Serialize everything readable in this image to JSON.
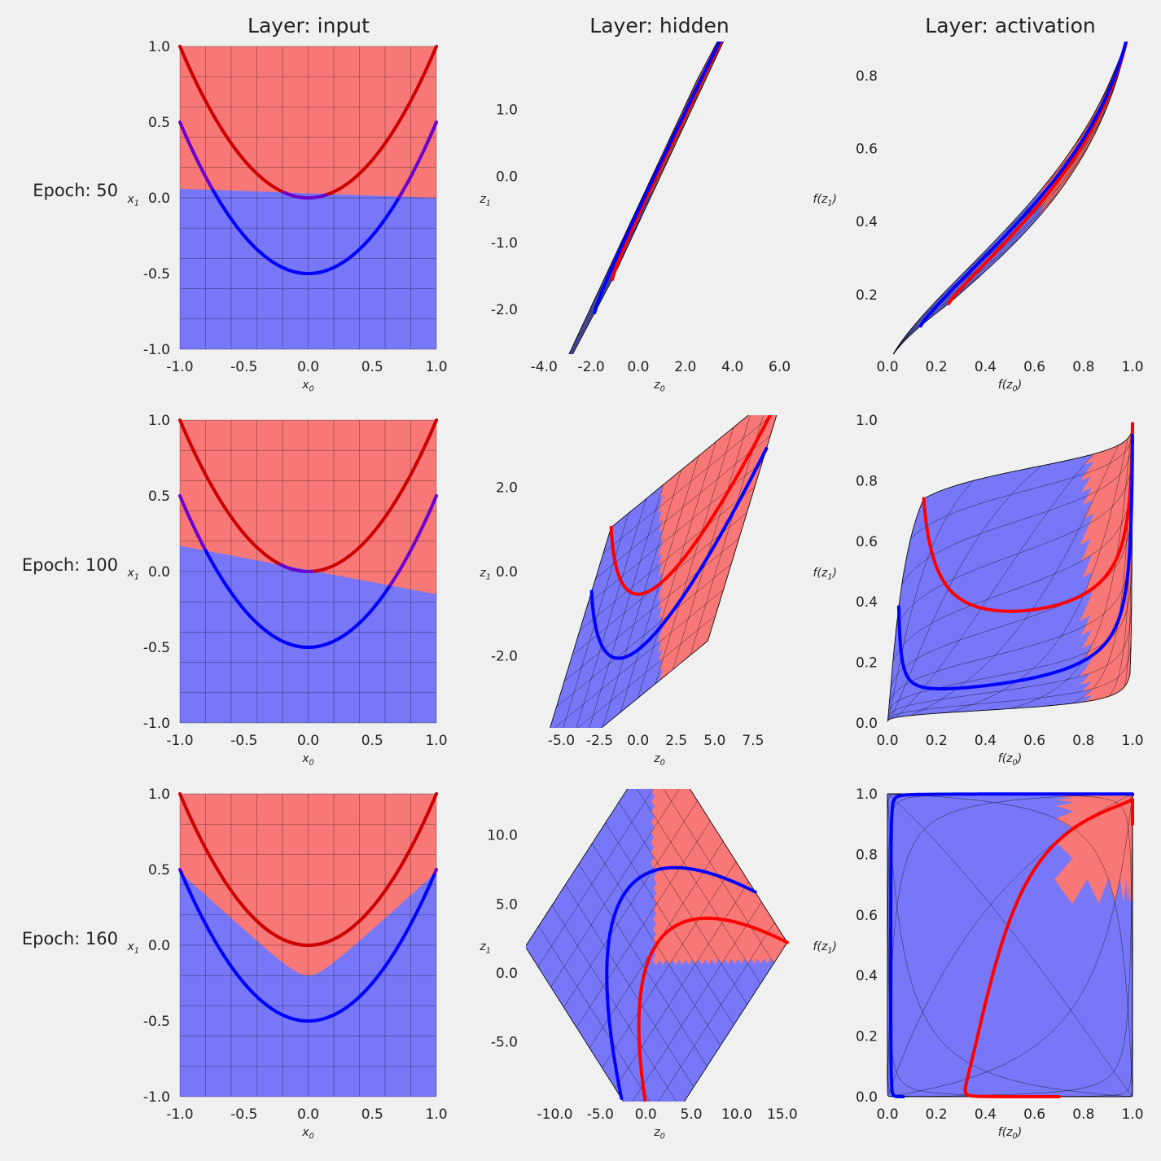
{
  "figure": {
    "background": "#f0f0f0",
    "colors": {
      "red_region": "#f87777",
      "blue_region": "#7777f8",
      "red_curve": "#ff0000",
      "blue_curve": "#0000ff",
      "dark_red_curve": "#cc0000",
      "purple_curve": "#6a00cc",
      "grid": "#000000"
    },
    "column_titles": [
      "Layer: input",
      "Layer: hidden",
      "Layer: activation"
    ],
    "row_labels": [
      "Epoch: 50",
      "Epoch: 100",
      "Epoch: 160"
    ]
  },
  "chart_data": [
    {
      "type": "area",
      "row": 0,
      "col": 0,
      "kind": "input",
      "xlabel": "x_0",
      "ylabel": "x_1",
      "xlim": [
        -1,
        1
      ],
      "ylim": [
        -1,
        1
      ],
      "xticks": [
        -1,
        -0.5,
        0,
        0.5,
        1
      ],
      "xticklabels": [
        "-1.0",
        "-0.5",
        "0.0",
        "0.5",
        "1.0"
      ],
      "yticks": [
        -1,
        -0.5,
        0,
        0.5,
        1
      ],
      "yticklabels": [
        "-1.0",
        "-0.5",
        "0.0",
        "0.5",
        "1.0"
      ],
      "series": [
        {
          "name": "red class",
          "curve": "y = x^2"
        },
        {
          "name": "blue class",
          "curve": "y = x^2 - 0.5"
        }
      ],
      "boundary": [
        [
          -1,
          0.06
        ],
        [
          1,
          0.0
        ]
      ]
    },
    {
      "type": "area",
      "row": 0,
      "col": 1,
      "kind": "hidden",
      "xlabel": "z_0",
      "ylabel": "z_1",
      "xlim": [
        -4.7,
        6.5
      ],
      "ylim": [
        -2.6,
        1.95
      ],
      "xticks": [
        -4,
        -2,
        0,
        2,
        4,
        6
      ],
      "xticklabels": [
        "-4.0",
        "-2.0",
        "0.0",
        "2.0",
        "4.0",
        "6.0"
      ],
      "yticks": [
        -2,
        -1,
        0,
        1
      ],
      "yticklabels": [
        "-2.0",
        "-1.0",
        "0.0",
        "1.0"
      ],
      "map": {
        "a": 3.3,
        "b": 1.5,
        "c": 2.5,
        "d": 1.0,
        "e": 0.7,
        "f": -0.05,
        "cut": 0.6
      }
    },
    {
      "type": "area",
      "row": 0,
      "col": 2,
      "kind": "activation",
      "xlabel": "f(z_0)",
      "ylabel": "f(z_1)",
      "xlim": [
        0,
        1
      ],
      "ylim": [
        0.05,
        0.88
      ],
      "xticks": [
        0,
        0.2,
        0.4,
        0.6,
        0.8,
        1
      ],
      "xticklabels": [
        "0.0",
        "0.2",
        "0.4",
        "0.6",
        "0.8",
        "1.0"
      ],
      "yticks": [
        0.2,
        0.4,
        0.6,
        0.8
      ],
      "yticklabels": [
        "0.2",
        "0.4",
        "0.6",
        "0.8"
      ],
      "map": {
        "a": 3.3,
        "b": 1.5,
        "c": 2.5,
        "d": 1.0,
        "e": 0.7,
        "f": -0.05,
        "cut": 0.6
      }
    },
    {
      "type": "area",
      "row": 1,
      "col": 0,
      "kind": "input",
      "xlabel": "x_0",
      "ylabel": "x_1",
      "xlim": [
        -1,
        1
      ],
      "ylim": [
        -1,
        1
      ],
      "xticks": [
        -1,
        -0.5,
        0,
        0.5,
        1
      ],
      "xticklabels": [
        "-1.0",
        "-0.5",
        "0.0",
        "0.5",
        "1.0"
      ],
      "yticks": [
        -1,
        -0.5,
        0,
        0.5,
        1
      ],
      "yticklabels": [
        "-1.0",
        "-0.5",
        "0.0",
        "0.5",
        "1.0"
      ],
      "series": [
        {
          "name": "red class",
          "curve": "y = x^2"
        },
        {
          "name": "blue class",
          "curve": "y = x^2 - 0.5"
        }
      ],
      "boundary": [
        [
          -1,
          0.17
        ],
        [
          1,
          -0.15
        ]
      ]
    },
    {
      "type": "area",
      "row": 1,
      "col": 1,
      "kind": "hidden",
      "xlabel": "z_0",
      "ylabel": "z_1",
      "xlim": [
        -7.2,
        10
      ],
      "ylim": [
        -3.6,
        3.6
      ],
      "xticks": [
        -5,
        -2.5,
        0,
        2.5,
        5,
        7.5
      ],
      "xticklabels": [
        "-5.0",
        "-2.5",
        "0.0",
        "2.5",
        "5.0",
        "7.5"
      ],
      "yticks": [
        -2,
        0,
        2
      ],
      "yticklabels": [
        "-2.0",
        "0.0",
        "2.0"
      ],
      "map": {
        "a": 5.7,
        "b": 2.55,
        "c": 1.7,
        "d": 3.05,
        "e": 1.4,
        "f": -0.3,
        "cut": 1.5
      }
    },
    {
      "type": "area",
      "row": 1,
      "col": 2,
      "kind": "activation",
      "xlabel": "f(z_0)",
      "ylabel": "f(z_1)",
      "xlim": [
        0,
        1
      ],
      "ylim": [
        0,
        1
      ],
      "xticks": [
        0,
        0.2,
        0.4,
        0.6,
        0.8,
        1
      ],
      "xticklabels": [
        "0.0",
        "0.2",
        "0.4",
        "0.6",
        "0.8",
        "1.0"
      ],
      "yticks": [
        0,
        0.2,
        0.4,
        0.6,
        0.8,
        1
      ],
      "yticklabels": [
        "0.0",
        "0.2",
        "0.4",
        "0.6",
        "0.8",
        "1.0"
      ],
      "map": {
        "a": 5.7,
        "b": 2.55,
        "c": 1.7,
        "d": 3.05,
        "e": 1.4,
        "f": -0.3,
        "cut": 1.5
      }
    },
    {
      "type": "area",
      "row": 2,
      "col": 0,
      "kind": "input",
      "xlabel": "x_0",
      "ylabel": "x_1",
      "xlim": [
        -1,
        1
      ],
      "ylim": [
        -1,
        1
      ],
      "xticks": [
        -1,
        -0.5,
        0,
        0.5,
        1
      ],
      "xticklabels": [
        "-1.0",
        "-0.5",
        "0.0",
        "0.5",
        "1.0"
      ],
      "yticks": [
        -1,
        -0.5,
        0,
        0.5,
        1
      ],
      "yticklabels": [
        "-1.0",
        "-0.5",
        "0.0",
        "0.5",
        "1.0"
      ],
      "series": [
        {
          "name": "red class",
          "curve": "y = x^2"
        },
        {
          "name": "blue class",
          "curve": "y = x^2 - 0.5"
        }
      ],
      "boundary_curve": "y = -0.2 + 0.77*(sqrt(x^2+0.0144)-0.12)"
    },
    {
      "type": "area",
      "row": 2,
      "col": 1,
      "kind": "hidden",
      "xlabel": "z_0",
      "ylabel": "z_1",
      "xlim": [
        -13,
        16
      ],
      "ylim": [
        -9,
        13
      ],
      "xticks": [
        -10,
        -5,
        0,
        5,
        10,
        15
      ],
      "xticklabels": [
        "-10.0",
        "-5.0",
        "0.0",
        "5.0",
        "10.0",
        "15.0"
      ],
      "yticks": [
        -5,
        0,
        5,
        10
      ],
      "yticklabels": [
        "-5.0",
        "0.0",
        "5.0",
        "10.0"
      ],
      "map": {
        "a": 7.35,
        "b": 7.05,
        "c": 7.5,
        "d": -7.35,
        "e": 1.15,
        "f": 2.05,
        "cut": 0
      }
    },
    {
      "type": "area",
      "row": 2,
      "col": 2,
      "kind": "activation",
      "xlabel": "f(z_0)",
      "ylabel": "f(z_1)",
      "xlim": [
        0,
        1
      ],
      "ylim": [
        0,
        1
      ],
      "xticks": [
        0,
        0.2,
        0.4,
        0.6,
        0.8,
        1
      ],
      "xticklabels": [
        "0.0",
        "0.2",
        "0.4",
        "0.6",
        "0.8",
        "1.0"
      ],
      "yticks": [
        0,
        0.2,
        0.4,
        0.6,
        0.8,
        1
      ],
      "yticklabels": [
        "0.0",
        "0.2",
        "0.4",
        "0.6",
        "0.8",
        "1.0"
      ],
      "map": {
        "a": 7.35,
        "b": 7.05,
        "c": 7.5,
        "d": -7.35,
        "e": 1.15,
        "f": 2.05,
        "cut": 0
      }
    }
  ]
}
